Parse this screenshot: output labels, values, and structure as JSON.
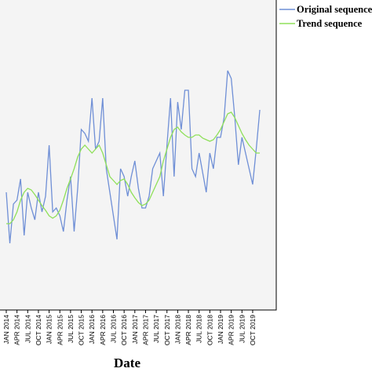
{
  "chart_data": {
    "type": "line",
    "x_label": "Date",
    "categories": [
      "JAN 2014",
      null,
      null,
      "APR 2014",
      null,
      null,
      "JUL 2014",
      null,
      null,
      "OCT 2014",
      null,
      null,
      "JAN 2015",
      null,
      null,
      "APR 2015",
      null,
      null,
      "JUL 2015",
      null,
      null,
      "OCT 2015",
      null,
      null,
      "JAN 2016",
      null,
      null,
      "APR 2016",
      null,
      null,
      "JUL 2016",
      null,
      null,
      "OCT 2016",
      null,
      null,
      "JAN 2017",
      null,
      null,
      "APR 2017",
      null,
      null,
      "JUL 2017",
      null,
      null,
      "OCT 2017",
      null,
      null,
      "JAN 2018",
      null,
      null,
      "APR 2018",
      null,
      null,
      "JUL 2018",
      null,
      null,
      "OCT 2018",
      null,
      null,
      "JAN 2019",
      null,
      null,
      "APR 2019",
      null,
      null,
      "JUL 2019",
      null,
      null,
      "OCT 2019",
      null,
      null
    ],
    "ylim": [
      0,
      395
    ],
    "series": [
      {
        "name": "Original sequence",
        "color": "#6f8fd6",
        "values": [
          150,
          85,
          135,
          140,
          167,
          95,
          150,
          130,
          115,
          150,
          125,
          145,
          210,
          125,
          130,
          120,
          100,
          140,
          170,
          100,
          155,
          230,
          225,
          215,
          270,
          205,
          215,
          270,
          180,
          150,
          120,
          90,
          180,
          170,
          145,
          170,
          190,
          155,
          130,
          130,
          145,
          180,
          190,
          200,
          145,
          210,
          270,
          170,
          265,
          230,
          280,
          280,
          180,
          170,
          200,
          175,
          150,
          200,
          180,
          220,
          220,
          245,
          305,
          295,
          245,
          185,
          220,
          200,
          180,
          160,
          205,
          255
        ]
      },
      {
        "name": "Trend sequence",
        "color": "#8fe05a",
        "values": [
          110,
          110,
          115,
          125,
          140,
          150,
          155,
          153,
          147,
          140,
          133,
          127,
          120,
          117,
          120,
          127,
          140,
          155,
          167,
          180,
          195,
          205,
          210,
          205,
          200,
          205,
          210,
          200,
          185,
          170,
          165,
          160,
          165,
          167,
          160,
          150,
          143,
          137,
          133,
          135,
          140,
          150,
          160,
          170,
          190,
          205,
          220,
          230,
          233,
          227,
          223,
          220,
          220,
          223,
          223,
          219,
          217,
          215,
          217,
          223,
          230,
          240,
          250,
          252,
          245,
          235,
          225,
          217,
          210,
          205,
          200,
          200
        ]
      }
    ]
  }
}
